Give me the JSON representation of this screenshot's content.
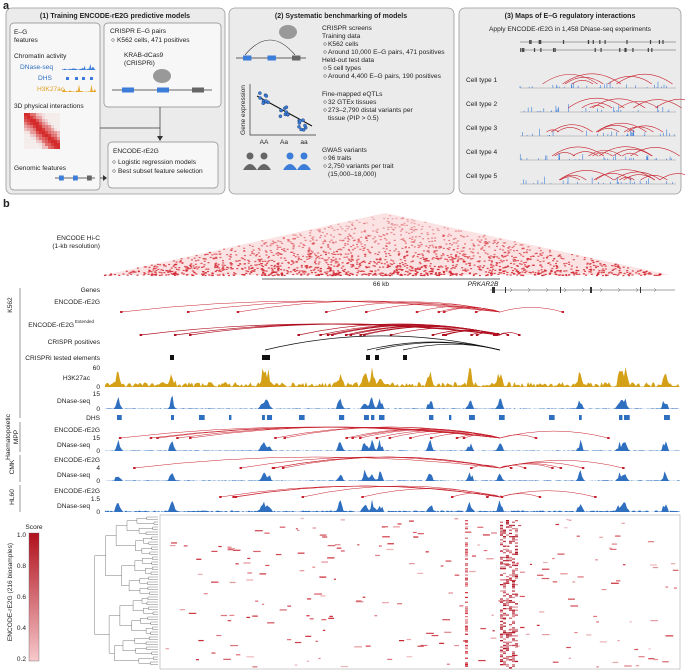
{
  "panel_a": {
    "label": "a",
    "box1": {
      "title": "(1) Training ENCODE-rE2G predictive models",
      "eg": "E–G",
      "features": "features",
      "chromatin": "Chromatin activity",
      "dnase": "DNase-seq",
      "dhs": "DHS",
      "h3k27ac": "H3K27ac",
      "physical": "3D physical interactions",
      "genomic": "Genomic features",
      "crispr": "CRISPR E–G pairs",
      "crispr_bullet": "K562 cells, 471 positives",
      "krab": "KRAB-dCas9",
      "crispri": "(CRISPRi)",
      "model": "ENCODE-rE2G",
      "model_bullets": [
        "Logistic regression models",
        "Best subset feature selection"
      ]
    },
    "box2": {
      "title": "(2) Systematic benchmarking of models",
      "lines": [
        "CRISPR screens",
        "Training data",
        "K562 cells",
        "Around 10,000 E–G pairs, 471 positives",
        "Held-out test data",
        "5 cell types",
        "Around 4,400 E–G pairs, 190 positives",
        "Fine-mapped eQTLs",
        "32 GTEx tissues",
        "273–2,790 distal variants per",
        "tissue (PIP > 0.5)",
        "GWAS variants",
        "96 traits",
        "2,750 variants per trait",
        "(15,000–18,000)"
      ],
      "ylabel": "Gene expression",
      "genotypes": [
        "AA",
        "Aa",
        "aa"
      ]
    },
    "box3": {
      "title": "(3) Maps of E–G regulatory interactions",
      "subtitle": "Apply ENCODE-rE2G in 1,458 DNase-seq experiments",
      "cell_types": [
        "Cell type 1",
        "Cell type 2",
        "Cell type 3",
        "Cell type 4",
        "Cell type 5"
      ]
    }
  },
  "panel_b": {
    "label": "b",
    "hic": [
      "ENCODE Hi-C",
      "(1-kb resolution)"
    ],
    "scale": "66 kb",
    "gene": "PRKAR2B",
    "groups": [
      "K562",
      "Haematopoietic",
      "MPP",
      "CMK",
      "HL60"
    ],
    "tracks": {
      "genes": "Genes",
      "e2g": "ENCODE-rE2G",
      "extended": "Extended",
      "crispr_pos": "CRISPR positives",
      "crispri": "CRISPRi tested elements",
      "h3k27ac": "H3K27ac",
      "dnase": "DNase-seq",
      "dhs": "DHS"
    },
    "ticks": {
      "h3k27ac": [
        "60",
        "0"
      ],
      "k562_dnase": [
        "15",
        "0"
      ],
      "mpp_dnase": [
        "15",
        "0"
      ],
      "cmk_dnase": [
        "4",
        "0"
      ],
      "hl60_dnase": [
        "1.5",
        "0"
      ]
    },
    "heatmap_label": "ENCODE-rE2G (216 biosamples)",
    "score_label": "Score",
    "score_ticks": [
      "1.0",
      "0.8",
      "0.6",
      "0.4",
      "0.2"
    ]
  }
}
